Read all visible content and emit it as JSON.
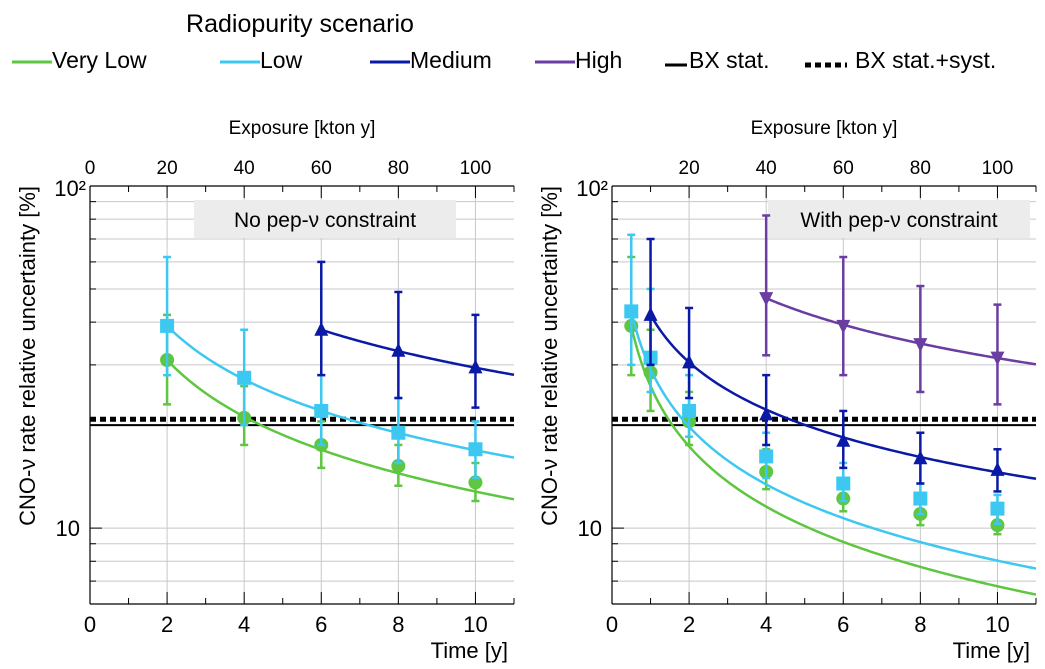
{
  "legend": {
    "title": "Radiopurity scenario",
    "items": [
      {
        "label": "Very Low",
        "color": "#5ec640",
        "style": "line"
      },
      {
        "label": "Low",
        "color": "#3cc8f0",
        "style": "line"
      },
      {
        "label": "Medium",
        "color": "#0a1aa6",
        "style": "line"
      },
      {
        "label": "High",
        "color": "#6a3da3",
        "style": "line"
      },
      {
        "label": "BX stat.",
        "color": "#000000",
        "style": "solid"
      },
      {
        "label": "BX stat.+syst.",
        "color": "#000000",
        "style": "dotted"
      }
    ]
  },
  "chart_data": [
    {
      "type": "scatter",
      "annotation": "No pep-ν constraint",
      "xlabel": "Time [y]",
      "ylabel": "CNO-ν rate relative uncertainty [%]",
      "x2label": "Exposure [kton y]",
      "xlim": [
        0,
        11
      ],
      "ylim": [
        6,
        100
      ],
      "yscale": "log",
      "xticks": [
        "0",
        "2",
        "4",
        "6",
        "8",
        "10"
      ],
      "x2ticks": [
        "0",
        "20",
        "40",
        "60",
        "80",
        "100"
      ],
      "yticks": [
        "10",
        "10²"
      ],
      "bx_stat": 20.0,
      "bx_stat_syst": 20.8,
      "series": [
        {
          "name": "Very Low",
          "color": "#5ec640",
          "marker": "circle",
          "x": [
            2,
            4,
            6,
            8,
            10
          ],
          "y": [
            31,
            21,
            17.5,
            15.2,
            13.6
          ],
          "err_low": [
            23,
            17.5,
            15,
            13.3,
            12
          ],
          "err_high": [
            42,
            26,
            20.5,
            17.5,
            15.5
          ],
          "fit": {
            "a": 31,
            "p": 0.55,
            "x0": 2
          }
        },
        {
          "name": "Low",
          "color": "#3cc8f0",
          "marker": "square",
          "x": [
            2,
            4,
            6,
            8,
            10
          ],
          "y": [
            39,
            27.5,
            22,
            19,
            17
          ],
          "err_low": [
            28,
            20,
            17.5,
            15.5,
            14
          ],
          "err_high": [
            62,
            38,
            28,
            24,
            20.5
          ],
          "fit": {
            "a": 39,
            "p": 0.52,
            "x0": 2
          }
        },
        {
          "name": "Medium",
          "color": "#0a1aa6",
          "marker": "triangle-up",
          "x": [
            6,
            8,
            10
          ],
          "y": [
            38,
            33,
            29.5
          ],
          "err_low": [
            28,
            24,
            22.5
          ],
          "err_high": [
            60,
            49,
            42
          ],
          "fit": {
            "a": 38,
            "p": 0.5,
            "x0": 6
          }
        }
      ]
    },
    {
      "type": "scatter",
      "annotation": "With pep-ν constraint",
      "xlabel": "Time [y]",
      "ylabel": "CNO-ν rate relative uncertainty [%]",
      "x2label": "Exposure [kton y]",
      "xlim": [
        0,
        11
      ],
      "ylim": [
        6,
        100
      ],
      "yscale": "log",
      "xticks": [
        "0",
        "2",
        "4",
        "6",
        "8",
        "10"
      ],
      "x2ticks": [
        "20",
        "40",
        "60",
        "80",
        "100"
      ],
      "yticks": [
        "10",
        "10²"
      ],
      "bx_stat": 20.0,
      "bx_stat_syst": 20.8,
      "series": [
        {
          "name": "Very Low",
          "color": "#5ec640",
          "marker": "circle",
          "x": [
            0.5,
            1,
            2,
            4,
            6,
            8,
            10
          ],
          "y": [
            39,
            28.5,
            20.5,
            14.6,
            12.2,
            11,
            10.2
          ],
          "err_low": [
            28,
            22,
            17.5,
            13,
            11.2,
            10.2,
            9.6
          ],
          "err_high": [
            62,
            38,
            25,
            17,
            13.5,
            12,
            11
          ],
          "fit": {
            "a": 39,
            "p": 0.585,
            "x0": 0.5
          }
        },
        {
          "name": "Low",
          "color": "#3cc8f0",
          "marker": "square",
          "x": [
            0.5,
            1,
            2,
            4,
            6,
            8,
            10
          ],
          "y": [
            43,
            31.5,
            22,
            16.2,
            13.5,
            12.2,
            11.4
          ],
          "err_low": [
            30,
            25,
            18.5,
            14,
            12,
            11,
            10.3
          ],
          "err_high": [
            72,
            50,
            28,
            19,
            15.5,
            13.5,
            12.5
          ],
          "fit": {
            "a": 43,
            "p": 0.56,
            "x0": 0.5
          }
        },
        {
          "name": "Medium",
          "color": "#0a1aa6",
          "marker": "triangle-up",
          "x": [
            1,
            2,
            4,
            6,
            8,
            10
          ],
          "y": [
            42,
            30.5,
            21.5,
            18,
            16,
            14.8
          ],
          "err_low": [
            30,
            24,
            17.5,
            15,
            13.5,
            12.8
          ],
          "err_high": [
            70,
            44,
            28,
            22,
            19,
            17
          ],
          "fit": {
            "a": 42,
            "p": 0.46,
            "x0": 1
          }
        },
        {
          "name": "High",
          "color": "#6a3da3",
          "marker": "triangle-down",
          "x": [
            4,
            6,
            8,
            10
          ],
          "y": [
            47,
            39,
            34.5,
            31.5
          ],
          "err_low": [
            32,
            28,
            25,
            23
          ],
          "err_high": [
            82,
            62,
            51,
            45
          ],
          "fit": {
            "a": 47,
            "p": 0.44,
            "x0": 4
          }
        }
      ]
    }
  ]
}
